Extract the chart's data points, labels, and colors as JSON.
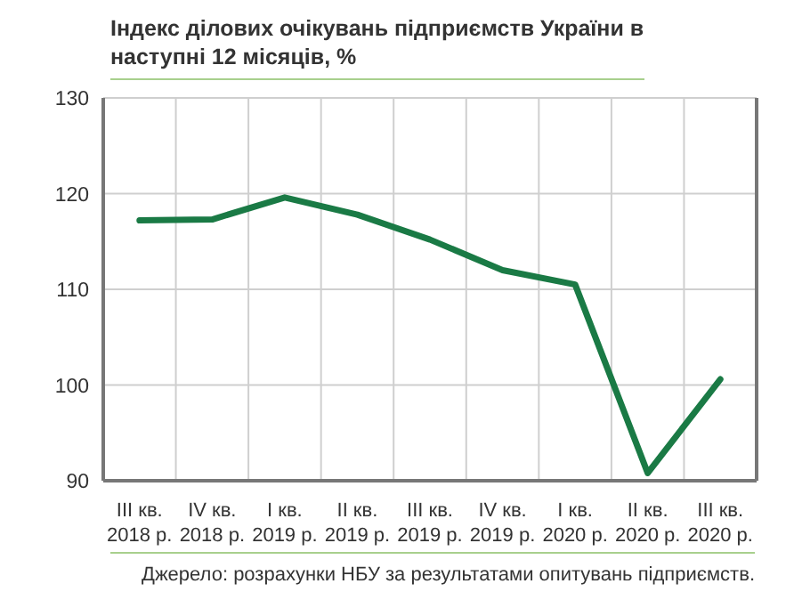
{
  "chart_data": {
    "type": "line",
    "title": "Індекс ділових очікувань підприємств України в наступні 12 місяців, %",
    "categories": [
      "III кв. 2018 р.",
      "IV кв. 2018 р.",
      "I кв. 2019 р.",
      "II кв. 2019 р.",
      "III кв. 2019 р.",
      "IV кв. 2019 р.",
      "I кв. 2020 р.",
      "II кв. 2020 р.",
      "III кв. 2020 р."
    ],
    "series": [
      {
        "color": "#1a7a45",
        "values": [
          117.2,
          117.3,
          119.6,
          117.8,
          115.2,
          112,
          110.5,
          90.8,
          100.6
        ]
      }
    ],
    "ylim": [
      90,
      130
    ],
    "yticks": [
      90,
      100,
      110,
      120,
      130
    ],
    "grid": true,
    "legend": false,
    "marker": "none",
    "line_style": "solid",
    "annotations": [
      "Джерело:  розрахунки  НБУ за результатами опитувань підприємств."
    ]
  }
}
